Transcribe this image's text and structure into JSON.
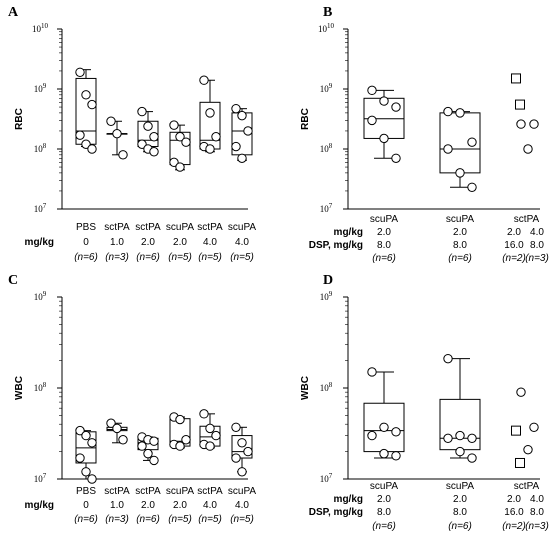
{
  "chart_data": [
    {
      "panel": "A",
      "type": "box",
      "ylabel": "RBC",
      "yscale": "log",
      "ylim": [
        10000000,
        10000000000
      ],
      "yticks": [
        {
          "value": 10000000,
          "exp": "7"
        },
        {
          "value": 100000000,
          "exp": "8"
        },
        {
          "value": 1000000000,
          "exp": "9"
        },
        {
          "value": 10000000000,
          "exp": "10"
        }
      ],
      "groups": [
        {
          "name": "PBS",
          "dose": "0",
          "n": "(n=6)",
          "min": 110000000,
          "q1": 120000000,
          "median": 200000000,
          "q3": 1500000000,
          "max": 2100000000,
          "points": [
            1900000000,
            800000000,
            550000000,
            170000000,
            120000000,
            100000000
          ]
        },
        {
          "name": "sctPA",
          "dose": "1.0",
          "n": "(n=3)",
          "min": 80000000,
          "q1": 180000000,
          "median": 180000000,
          "q3": 180000000,
          "max": 290000000,
          "points": [
            290000000,
            180000000,
            80000000
          ]
        },
        {
          "name": "sctPA",
          "dose": "2.0",
          "n": "(n=6)",
          "min": 90000000,
          "q1": 110000000,
          "median": 140000000,
          "q3": 290000000,
          "max": 420000000,
          "points": [
            420000000,
            240000000,
            160000000,
            120000000,
            100000000,
            90000000
          ]
        },
        {
          "name": "scuPA",
          "dose": "2.0",
          "n": "(n=5)",
          "min": 45000000,
          "q1": 55000000,
          "median": 140000000,
          "q3": 190000000,
          "max": 250000000,
          "points": [
            250000000,
            160000000,
            130000000,
            60000000,
            50000000
          ]
        },
        {
          "name": "sctPA",
          "dose": "4.0",
          "n": "(n=5)",
          "min": 90000000,
          "q1": 100000000,
          "median": 140000000,
          "q3": 600000000,
          "max": 1400000000,
          "points": [
            1400000000,
            400000000,
            160000000,
            110000000,
            100000000
          ]
        },
        {
          "name": "scuPA",
          "dose": "4.0",
          "n": "(n=5)",
          "min": 65000000,
          "q1": 80000000,
          "median": 200000000,
          "q3": 400000000,
          "max": 470000000,
          "points": [
            470000000,
            360000000,
            200000000,
            110000000,
            70000000
          ]
        }
      ],
      "rows": [
        {
          "label": "mg/kg"
        }
      ]
    },
    {
      "panel": "B",
      "type": "box",
      "ylabel": "RBC",
      "yscale": "log",
      "ylim": [
        10000000,
        10000000000
      ],
      "yticks": [
        {
          "value": 10000000,
          "exp": "7"
        },
        {
          "value": 100000000,
          "exp": "8"
        },
        {
          "value": 1000000000,
          "exp": "9"
        },
        {
          "value": 10000000000,
          "exp": "10"
        }
      ],
      "groups": [
        {
          "name": "scuPA",
          "dose": "2.0",
          "dsp": "8.0",
          "n": "(n=6)",
          "min": 70000000,
          "q1": 150000000,
          "median": 320000000,
          "q3": 700000000,
          "max": 950000000,
          "points": [
            950000000,
            630000000,
            500000000,
            300000000,
            150000000,
            70000000
          ]
        },
        {
          "name": "scuPA",
          "dose": "2.0",
          "dsp": "8.0",
          "n": "(n=6)",
          "min": 23000000,
          "q1": 40000000,
          "median": 100000000,
          "q3": 400000000,
          "max": 420000000,
          "points": [
            420000000,
            400000000,
            130000000,
            100000000,
            40000000,
            23000000
          ]
        }
      ],
      "extra_group": {
        "name": "sctPA",
        "dose_a": "2.0",
        "dose_b": "4.0",
        "dsp_a": "16.0",
        "dsp_b": "8.0",
        "n_a": "(n=2)",
        "n_b": "(n=3)",
        "squares": [
          1500000000,
          550000000
        ],
        "circles": [
          260000000,
          260000000,
          100000000
        ]
      },
      "rows": [
        {
          "label": "mg/kg"
        },
        {
          "label": "DSP, mg/kg"
        }
      ]
    },
    {
      "panel": "C",
      "type": "box",
      "ylabel": "WBC",
      "yscale": "log",
      "ylim": [
        10000000,
        1000000000
      ],
      "yticks": [
        {
          "value": 10000000,
          "exp": "7"
        },
        {
          "value": 100000000,
          "exp": "8"
        },
        {
          "value": 1000000000,
          "exp": "9"
        }
      ],
      "groups": [
        {
          "name": "PBS",
          "dose": "0",
          "n": "(n=6)",
          "min": 10000000,
          "q1": 15000000,
          "median": 22000000,
          "q3": 33000000,
          "max": 34000000,
          "points": [
            34000000,
            30000000,
            25000000,
            17000000,
            12000000,
            10000000
          ]
        },
        {
          "name": "sctPA",
          "dose": "1.0",
          "n": "(n=3)",
          "min": 25000000,
          "q1": 34000000,
          "median": 35000000,
          "q3": 37000000,
          "max": 41000000,
          "points": [
            41000000,
            36000000,
            27000000
          ]
        },
        {
          "name": "sctPA",
          "dose": "2.0",
          "n": "(n=6)",
          "min": 16000000,
          "q1": 21000000,
          "median": 25000000,
          "q3": 28000000,
          "max": 29000000,
          "points": [
            29000000,
            27000000,
            26000000,
            23000000,
            19000000,
            16000000
          ]
        },
        {
          "name": "scuPA",
          "dose": "2.0",
          "n": "(n=5)",
          "min": 22000000,
          "q1": 23000000,
          "median": 26000000,
          "q3": 46000000,
          "max": 48000000,
          "points": [
            48000000,
            45000000,
            27000000,
            24000000,
            23000000
          ]
        },
        {
          "name": "sctPA",
          "dose": "4.0",
          "n": "(n=5)",
          "min": 22000000,
          "q1": 23000000,
          "median": 29000000,
          "q3": 38000000,
          "max": 52000000,
          "points": [
            52000000,
            36000000,
            30000000,
            24000000,
            23000000
          ]
        },
        {
          "name": "scuPA",
          "dose": "4.0",
          "n": "(n=5)",
          "min": 12000000,
          "q1": 17000000,
          "median": 20000000,
          "q3": 30000000,
          "max": 37000000,
          "points": [
            37000000,
            25000000,
            20000000,
            17000000,
            12000000
          ]
        }
      ],
      "rows": [
        {
          "label": "mg/kg"
        }
      ]
    },
    {
      "panel": "D",
      "type": "box",
      "ylabel": "WBC",
      "yscale": "log",
      "ylim": [
        10000000,
        1000000000
      ],
      "yticks": [
        {
          "value": 10000000,
          "exp": "7"
        },
        {
          "value": 100000000,
          "exp": "8"
        },
        {
          "value": 1000000000,
          "exp": "9"
        }
      ],
      "groups": [
        {
          "name": "scuPA",
          "dose": "2.0",
          "dsp": "8.0",
          "n": "(n=6)",
          "min": 17000000,
          "q1": 20000000,
          "median": 34000000,
          "q3": 68000000,
          "max": 150000000,
          "points": [
            150000000,
            37000000,
            33000000,
            30000000,
            19000000,
            18000000
          ]
        },
        {
          "name": "scuPA",
          "dose": "2.0",
          "dsp": "8.0",
          "n": "(n=6)",
          "min": 17000000,
          "q1": 21000000,
          "median": 28000000,
          "q3": 75000000,
          "max": 210000000,
          "points": [
            210000000,
            30000000,
            28000000,
            28000000,
            20000000,
            17000000
          ]
        }
      ],
      "extra_group": {
        "name": "sctPA",
        "dose_a": "2.0",
        "dose_b": "4.0",
        "dsp_a": "16.0",
        "dsp_b": "8.0",
        "n_a": "(n=2)",
        "n_b": "(n=3)",
        "squares": [
          34000000,
          15000000
        ],
        "circles": [
          90000000,
          37000000,
          21000000
        ]
      },
      "rows": [
        {
          "label": "mg/kg"
        },
        {
          "label": "DSP, mg/kg"
        }
      ]
    }
  ]
}
